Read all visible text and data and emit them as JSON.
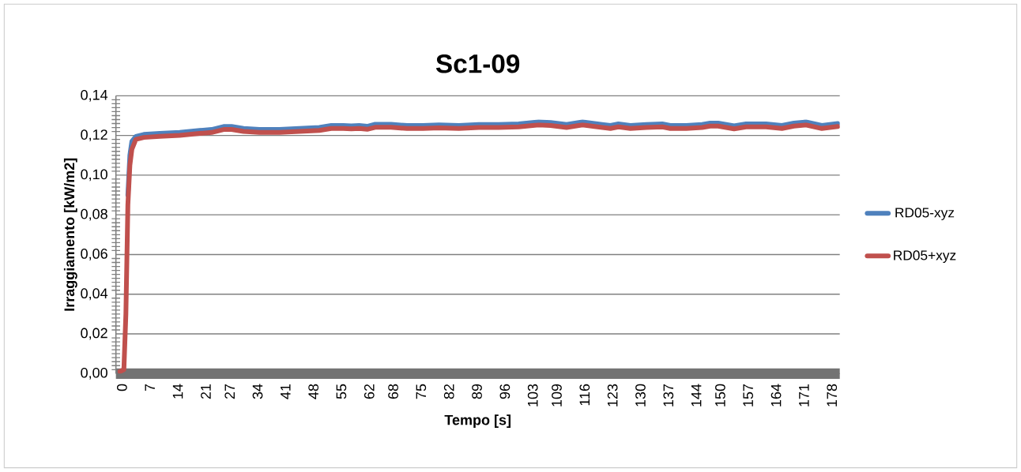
{
  "chart_data": {
    "type": "line",
    "title": "Sc1-09",
    "xlabel": "Tempo [s]",
    "ylabel": "Irraggiamento [kW/m2]",
    "xlim": [
      -1,
      180.5
    ],
    "ylim": [
      0,
      0.14
    ],
    "xticks": [
      0,
      7,
      14,
      21,
      27,
      34,
      41,
      48,
      55,
      62,
      68,
      75,
      82,
      89,
      96,
      103,
      109,
      116,
      123,
      130,
      137,
      144,
      150,
      157,
      164,
      171,
      178
    ],
    "yticks": [
      {
        "value": 0,
        "label": "0,00"
      },
      {
        "value": 0.02,
        "label": "0,02"
      },
      {
        "value": 0.04,
        "label": "0,04"
      },
      {
        "value": 0.06,
        "label": "0,06"
      },
      {
        "value": 0.08,
        "label": "0,08"
      },
      {
        "value": 0.1,
        "label": "0,10"
      },
      {
        "value": 0.12,
        "label": "0,12"
      },
      {
        "value": 0.14,
        "label": "0,14"
      },
      {
        "value": 0.002,
        "label": null
      },
      {
        "value": 0.004,
        "label": null
      },
      {
        "value": 0.006,
        "label": null
      },
      {
        "value": 0.008,
        "label": null
      },
      {
        "value": 0.01,
        "label": null
      },
      {
        "value": 0.012,
        "label": null
      },
      {
        "value": 0.014,
        "label": null
      },
      {
        "value": 0.016,
        "label": null
      },
      {
        "value": 0.018,
        "label": null
      },
      {
        "value": 0.022,
        "label": null
      },
      {
        "value": 0.024,
        "label": null
      },
      {
        "value": 0.026,
        "label": null
      },
      {
        "value": 0.028,
        "label": null
      },
      {
        "value": 0.03,
        "label": null
      },
      {
        "value": 0.032,
        "label": null
      },
      {
        "value": 0.034,
        "label": null
      },
      {
        "value": 0.036,
        "label": null
      },
      {
        "value": 0.038,
        "label": null
      },
      {
        "value": 0.042,
        "label": null
      },
      {
        "value": 0.044,
        "label": null
      },
      {
        "value": 0.046,
        "label": null
      },
      {
        "value": 0.048,
        "label": null
      },
      {
        "value": 0.05,
        "label": null
      },
      {
        "value": 0.052,
        "label": null
      },
      {
        "value": 0.054,
        "label": null
      },
      {
        "value": 0.056,
        "label": null
      },
      {
        "value": 0.058,
        "label": null
      },
      {
        "value": 0.062,
        "label": null
      },
      {
        "value": 0.064,
        "label": null
      },
      {
        "value": 0.066,
        "label": null
      },
      {
        "value": 0.068,
        "label": null
      },
      {
        "value": 0.07,
        "label": null
      },
      {
        "value": 0.072,
        "label": null
      },
      {
        "value": 0.074,
        "label": null
      },
      {
        "value": 0.076,
        "label": null
      },
      {
        "value": 0.078,
        "label": null
      },
      {
        "value": 0.082,
        "label": null
      },
      {
        "value": 0.084,
        "label": null
      },
      {
        "value": 0.086,
        "label": null
      },
      {
        "value": 0.088,
        "label": null
      },
      {
        "value": 0.09,
        "label": null
      },
      {
        "value": 0.092,
        "label": null
      },
      {
        "value": 0.094,
        "label": null
      },
      {
        "value": 0.096,
        "label": null
      },
      {
        "value": 0.098,
        "label": null
      },
      {
        "value": 0.102,
        "label": null
      },
      {
        "value": 0.104,
        "label": null
      },
      {
        "value": 0.106,
        "label": null
      },
      {
        "value": 0.108,
        "label": null
      },
      {
        "value": 0.11,
        "label": null
      },
      {
        "value": 0.112,
        "label": null
      },
      {
        "value": 0.114,
        "label": null
      },
      {
        "value": 0.116,
        "label": null
      },
      {
        "value": 0.118,
        "label": null
      },
      {
        "value": 0.122,
        "label": null
      },
      {
        "value": 0.124,
        "label": null
      },
      {
        "value": 0.126,
        "label": null
      },
      {
        "value": 0.128,
        "label": null
      },
      {
        "value": 0.13,
        "label": null
      },
      {
        "value": 0.132,
        "label": null
      },
      {
        "value": 0.134,
        "label": null
      },
      {
        "value": 0.136,
        "label": null
      },
      {
        "value": 0.138,
        "label": null
      }
    ],
    "grid": "y",
    "legend": "right",
    "marker": "none",
    "line_style": "solid",
    "x": [
      0,
      1,
      1.5,
      2,
      2.5,
      3,
      4,
      6,
      10,
      15,
      20,
      23,
      26,
      28,
      31,
      35,
      40,
      45,
      50,
      53,
      56,
      58,
      60,
      62,
      64,
      68,
      72,
      76,
      80,
      85,
      90,
      95,
      100,
      105,
      108,
      112,
      116,
      119,
      123,
      125,
      128,
      132,
      136,
      138,
      142,
      146,
      148,
      150,
      154,
      157,
      162,
      166,
      169,
      172,
      176,
      178,
      180
    ],
    "series": [
      {
        "name": "RD05-xyz",
        "color": "#4f81bd",
        "values": [
          null,
          null,
          null,
          0.09,
          0.11,
          0.117,
          0.1195,
          0.1205,
          0.121,
          0.1215,
          0.1225,
          0.123,
          0.1245,
          0.1245,
          0.1235,
          0.123,
          0.123,
          0.1235,
          0.124,
          0.125,
          0.125,
          0.1248,
          0.125,
          0.1246,
          0.1256,
          0.1256,
          0.125,
          0.125,
          0.1253,
          0.125,
          0.1255,
          0.1255,
          0.1258,
          0.1268,
          0.1265,
          0.1255,
          0.1268,
          0.126,
          0.125,
          0.1258,
          0.125,
          0.1255,
          0.1258,
          0.125,
          0.125,
          0.1255,
          0.1262,
          0.1262,
          0.1248,
          0.1258,
          0.1258,
          0.125,
          0.1262,
          0.1268,
          0.125,
          0.1255,
          0.126
        ]
      },
      {
        "name": "RD05+xyz",
        "color": "#c0504d",
        "values": [
          0.001,
          0.002,
          0.03,
          0.085,
          0.105,
          0.113,
          0.118,
          0.119,
          0.1195,
          0.12,
          0.121,
          0.1215,
          0.123,
          0.123,
          0.122,
          0.1215,
          0.1215,
          0.122,
          0.1225,
          0.1235,
          0.1235,
          0.1233,
          0.1235,
          0.1231,
          0.1241,
          0.1241,
          0.1235,
          0.1235,
          0.1238,
          0.1235,
          0.124,
          0.124,
          0.1243,
          0.1253,
          0.125,
          0.124,
          0.1253,
          0.1245,
          0.1235,
          0.1243,
          0.1235,
          0.124,
          0.1243,
          0.1235,
          0.1235,
          0.124,
          0.1247,
          0.1247,
          0.1233,
          0.1243,
          0.1243,
          0.1235,
          0.1247,
          0.1253,
          0.1235,
          0.124,
          0.1245
        ]
      }
    ]
  }
}
